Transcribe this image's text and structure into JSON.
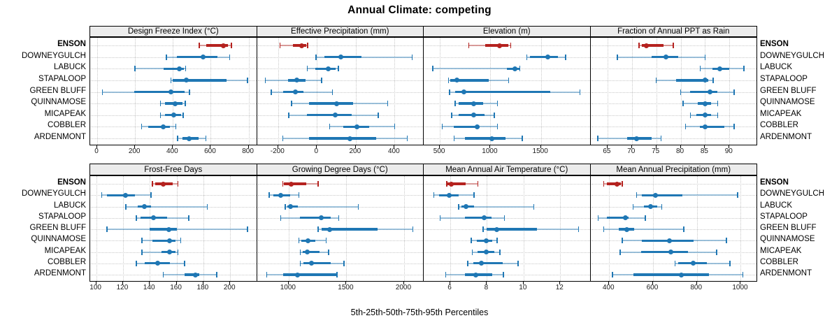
{
  "title": "Annual Climate: competing",
  "caption": "5th-25th-50th-75th-95th Percentiles",
  "colors": {
    "highlight": "#b5221f",
    "highlight_light": "rgba(181,34,31,0.42)",
    "normal": "#1f77b4",
    "normal_light": "rgba(31,119,180,0.42)",
    "strip_bg": "#ececec",
    "grid": "#c8c8c8",
    "border": "#000000",
    "tick_text": "#1a1a1a"
  },
  "chart_data": {
    "type": "scatter",
    "subtype": "trellis dot-and-interval percentile plot, 2 rows x 4 columns, shared site rows",
    "legend": "none",
    "grid": "dotted horizontal and vertical gridlines",
    "percentiles": [
      5,
      25,
      50,
      75,
      95
    ],
    "highlight_site": "ENSON",
    "sites": [
      "ENSON",
      "DOWNEYGULCH",
      "LABUCK",
      "STAPALOOP",
      "GREEN BLUFF",
      "QUINNAMOSE",
      "MICAPEAK",
      "COBBLER",
      "ARDENMONT"
    ],
    "panels": [
      {
        "title": "Design Freeze Index (°C)",
        "ticks": [
          0,
          200,
          400,
          600,
          800
        ],
        "xlim": [
          -37,
          844
        ],
        "values": [
          [
            540,
            575,
            665,
            690,
            710
          ],
          [
            365,
            420,
            560,
            635,
            700
          ],
          [
            200,
            350,
            433,
            458,
            467
          ],
          [
            390,
            400,
            470,
            685,
            795
          ],
          [
            27,
            195,
            390,
            462,
            487
          ],
          [
            335,
            360,
            410,
            450,
            465
          ],
          [
            335,
            360,
            405,
            445,
            455
          ],
          [
            235,
            270,
            350,
            385,
            415
          ],
          [
            425,
            450,
            487,
            535,
            575
          ]
        ]
      },
      {
        "title": "Effective Precipitation (mm)",
        "ticks": [
          -200,
          0,
          200,
          400
        ],
        "xlim": [
          -309,
          550
        ],
        "values": [
          [
            -190,
            -125,
            -80,
            -55,
            -48
          ],
          [
            -5,
            40,
            125,
            230,
            490
          ],
          [
            -50,
            -10,
            60,
            95,
            110
          ],
          [
            -265,
            -150,
            -105,
            -60,
            25
          ],
          [
            -235,
            -175,
            -110,
            -70,
            80
          ],
          [
            -130,
            -40,
            100,
            185,
            365
          ],
          [
            -145,
            -50,
            95,
            180,
            315
          ],
          [
            65,
            135,
            205,
            270,
            400
          ],
          [
            -175,
            -40,
            170,
            305,
            465
          ]
        ]
      },
      {
        "title": "Elevation (m)",
        "ticks": [
          500,
          1000,
          1500
        ],
        "xlim": [
          340,
          1990
        ],
        "values": [
          [
            785,
            950,
            1090,
            1180,
            1200
          ],
          [
            1360,
            1390,
            1570,
            1670,
            1745
          ],
          [
            430,
            1165,
            1245,
            1285,
            1292
          ],
          [
            585,
            600,
            670,
            985,
            1180
          ],
          [
            595,
            650,
            735,
            1590,
            1885
          ],
          [
            650,
            685,
            835,
            930,
            1070
          ],
          [
            615,
            685,
            835,
            940,
            1040
          ],
          [
            525,
            640,
            870,
            895,
            1070
          ],
          [
            640,
            745,
            1015,
            1150,
            1315
          ]
        ]
      },
      {
        "title": "Fraction of Annual PPT as Rain",
        "ticks": [
          65,
          70,
          75,
          80,
          85,
          90
        ],
        "xlim": [
          61.5,
          95.7
        ],
        "values": [
          [
            71.5,
            72,
            73,
            76.5,
            78.5
          ],
          [
            67,
            74,
            77,
            79.5,
            85
          ],
          [
            84,
            86.5,
            88,
            90,
            93
          ],
          [
            75,
            79,
            85,
            85.6,
            86.7
          ],
          [
            80,
            82,
            86,
            87.5,
            91
          ],
          [
            80.5,
            83.5,
            85,
            86.2,
            87.6
          ],
          [
            82,
            83.2,
            85,
            86.3,
            87.6
          ],
          [
            81,
            84,
            85,
            89,
            91
          ],
          [
            63,
            69,
            71,
            74,
            76
          ]
        ]
      },
      {
        "title": "Frost-Free Days",
        "ticks": [
          100,
          120,
          140,
          160,
          180,
          200
        ],
        "xlim": [
          95.5,
          220
        ],
        "values": [
          [
            142,
            144,
            150,
            157,
            161
          ],
          [
            104,
            108,
            122,
            129,
            141
          ],
          [
            122,
            131,
            136,
            141,
            183
          ],
          [
            130,
            133,
            143,
            153,
            169
          ],
          [
            108,
            140,
            154,
            160,
            213
          ],
          [
            134,
            142,
            155,
            159,
            163
          ],
          [
            134,
            149,
            155,
            159,
            161
          ],
          [
            130,
            136,
            146,
            155,
            166
          ],
          [
            150,
            166,
            174,
            177,
            190
          ]
        ]
      },
      {
        "title": "Growing Degree Days (°C)",
        "ticks": [
          1000,
          1500,
          2000
        ],
        "xlim": [
          725,
          2170
        ],
        "values": [
          [
            950,
            960,
            1020,
            1150,
            1255
          ],
          [
            830,
            870,
            930,
            1010,
            1090
          ],
          [
            970,
            990,
            1015,
            1080,
            1605
          ],
          [
            930,
            1100,
            1280,
            1365,
            1435
          ],
          [
            1255,
            1285,
            1355,
            1770,
            2075
          ],
          [
            1090,
            1110,
            1165,
            1230,
            1325
          ],
          [
            1100,
            1120,
            1160,
            1265,
            1345
          ],
          [
            1100,
            1130,
            1195,
            1365,
            1480
          ],
          [
            810,
            950,
            1075,
            1410,
            1420
          ]
        ]
      },
      {
        "title": "Mean Annual Air Temperature (°C)",
        "ticks": [
          6,
          8,
          10,
          12
        ],
        "xlim": [
          4.55,
          13.65
        ],
        "values": [
          [
            5.8,
            5.85,
            6.05,
            6.85,
            7.5
          ],
          [
            5.1,
            5.4,
            5.95,
            6.45,
            7.3
          ],
          [
            6.45,
            6.6,
            6.85,
            7.3,
            10.55
          ],
          [
            5.45,
            6.8,
            7.85,
            8.25,
            8.95
          ],
          [
            7.8,
            8.0,
            8.55,
            10.75,
            13.0
          ],
          [
            7.15,
            7.45,
            7.95,
            8.3,
            8.55
          ],
          [
            7.2,
            7.5,
            7.95,
            8.4,
            8.7
          ],
          [
            6.95,
            7.25,
            7.7,
            8.85,
            9.7
          ],
          [
            5.75,
            6.8,
            7.4,
            8.3,
            8.9
          ]
        ]
      },
      {
        "title": "Mean Annual Precipitation (mm)",
        "ticks": [
          400,
          600,
          800,
          1000
        ],
        "xlim": [
          315,
          1075
        ],
        "values": [
          [
            375,
            390,
            435,
            455,
            460
          ],
          [
            525,
            550,
            610,
            735,
            985
          ],
          [
            510,
            560,
            590,
            620,
            640
          ],
          [
            350,
            390,
            475,
            490,
            565
          ],
          [
            375,
            445,
            480,
            515,
            740
          ],
          [
            460,
            550,
            675,
            785,
            935
          ],
          [
            450,
            545,
            680,
            760,
            890
          ],
          [
            700,
            715,
            785,
            845,
            950
          ],
          [
            415,
            510,
            730,
            855,
            1010
          ]
        ]
      }
    ]
  }
}
